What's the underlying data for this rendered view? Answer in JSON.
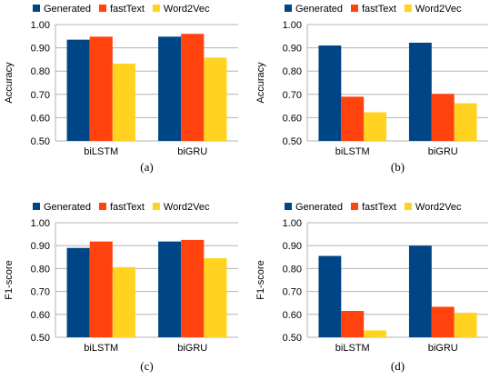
{
  "chart_data": [
    {
      "type": "bar",
      "panel_label": "(a)",
      "categories": [
        "biLSTM",
        "biGRU"
      ],
      "series": [
        {
          "name": "Generated",
          "values": [
            0.935,
            0.948
          ]
        },
        {
          "name": "fastText",
          "values": [
            0.948,
            0.96
          ]
        },
        {
          "name": "Word2Vec",
          "values": [
            0.832,
            0.858
          ]
        }
      ],
      "ylabel": "Accuracy",
      "ylim": [
        0.5,
        1.0
      ],
      "yticks": [
        "0.50",
        "0.60",
        "0.70",
        "0.80",
        "0.90",
        "1.00"
      ],
      "grid": true,
      "legend": "top"
    },
    {
      "type": "bar",
      "panel_label": "(b)",
      "categories": [
        "biLSTM",
        "biGRU"
      ],
      "series": [
        {
          "name": "Generated",
          "values": [
            0.91,
            0.922
          ]
        },
        {
          "name": "fastText",
          "values": [
            0.69,
            0.702
          ]
        },
        {
          "name": "Word2Vec",
          "values": [
            0.623,
            0.662
          ]
        }
      ],
      "ylabel": "Accuracy",
      "ylim": [
        0.5,
        1.0
      ],
      "yticks": [
        "0.50",
        "0.60",
        "0.70",
        "0.80",
        "0.90",
        "1.00"
      ],
      "grid": true,
      "legend": "top"
    },
    {
      "type": "bar",
      "panel_label": "(c)",
      "categories": [
        "biLSTM",
        "biGRU"
      ],
      "series": [
        {
          "name": "Generated",
          "values": [
            0.89,
            0.918
          ]
        },
        {
          "name": "fastText",
          "values": [
            0.918,
            0.925
          ]
        },
        {
          "name": "Word2Vec",
          "values": [
            0.806,
            0.845
          ]
        }
      ],
      "ylabel": "F1-score",
      "ylim": [
        0.5,
        1.0
      ],
      "yticks": [
        "0.50",
        "0.60",
        "0.70",
        "0.80",
        "0.90",
        "1.00"
      ],
      "grid": true,
      "legend": "top"
    },
    {
      "type": "bar",
      "panel_label": "(d)",
      "categories": [
        "biLSTM",
        "biGRU"
      ],
      "series": [
        {
          "name": "Generated",
          "values": [
            0.855,
            0.9
          ]
        },
        {
          "name": "fastText",
          "values": [
            0.615,
            0.633
          ]
        },
        {
          "name": "Word2Vec",
          "values": [
            0.53,
            0.607
          ]
        }
      ],
      "ylabel": "F1-score",
      "ylim": [
        0.5,
        1.0
      ],
      "yticks": [
        "0.50",
        "0.60",
        "0.70",
        "0.80",
        "0.90",
        "1.00"
      ],
      "grid": true,
      "legend": "top"
    }
  ],
  "colors": {
    "Generated": "#004586",
    "fastText": "#ff420e",
    "Word2Vec": "#ffd320"
  }
}
